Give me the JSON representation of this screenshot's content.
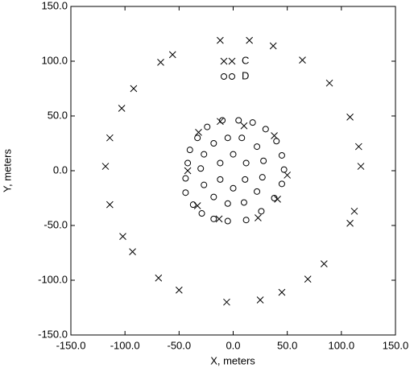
{
  "chart_data": {
    "type": "scatter",
    "xlabel": "X, meters",
    "ylabel": "Y, meters",
    "xlim": [
      -150,
      150
    ],
    "ylim": [
      -150,
      150
    ],
    "xticks": [
      {
        "value": -150,
        "label": "-150.0"
      },
      {
        "value": -100,
        "label": "-100.0"
      },
      {
        "value": -50,
        "label": "-50.0"
      },
      {
        "value": 0,
        "label": "0.0"
      },
      {
        "value": 50,
        "label": "50.0"
      },
      {
        "value": 100,
        "label": "100.0"
      },
      {
        "value": 150,
        "label": "150.0"
      }
    ],
    "yticks": [
      {
        "value": -150,
        "label": "-150.0"
      },
      {
        "value": -100,
        "label": "-100.0"
      },
      {
        "value": -50,
        "label": "-50.0"
      },
      {
        "value": 0,
        "label": "0.0"
      },
      {
        "value": 50,
        "label": "50.0"
      },
      {
        "value": 100,
        "label": "100.0"
      },
      {
        "value": 150,
        "label": "150.0"
      }
    ],
    "grid": false,
    "series": [
      {
        "name": "C",
        "marker": "x",
        "color": "#000000",
        "x": [
          -12,
          15,
          37,
          -67,
          -56,
          64,
          89,
          -92,
          -103,
          108,
          -114,
          116,
          -118,
          118,
          -114,
          112,
          108,
          -102,
          -93,
          84,
          -69,
          69,
          -50,
          45,
          -6,
          25,
          -32,
          -12,
          10,
          38,
          -42,
          50,
          41,
          -33,
          -13,
          23
        ],
        "y": [
          119,
          119,
          114,
          99,
          106,
          101,
          80,
          75,
          57,
          49,
          30,
          22,
          4,
          4,
          -31,
          -37,
          -48,
          -60,
          -74,
          -85,
          -98,
          -99,
          -109,
          -111,
          -120,
          -118,
          35,
          45,
          41,
          32,
          0,
          -4,
          -26,
          -32,
          -44,
          -43
        ]
      },
      {
        "name": "D",
        "marker": "o",
        "color": "#000000",
        "x": [
          -10,
          5,
          18,
          30,
          40,
          45,
          47,
          45,
          38,
          26,
          12,
          -5,
          -18,
          -29,
          -37,
          -44,
          -44,
          -42,
          -40,
          -33,
          -24,
          -5,
          8,
          22,
          28,
          27,
          22,
          10,
          -5,
          -18,
          -27,
          -30,
          -27,
          -18,
          0,
          12,
          11,
          0,
          -12,
          -12
        ],
        "y": [
          46,
          46,
          44,
          38,
          27,
          14,
          1,
          -12,
          -25,
          -37,
          -45,
          -46,
          -44,
          -39,
          -31,
          -20,
          -7,
          7,
          19,
          30,
          40,
          30,
          30,
          22,
          9,
          -6,
          -19,
          -29,
          -30,
          -24,
          -13,
          2,
          15,
          25,
          15,
          7,
          -8,
          -16,
          -8,
          7
        ]
      }
    ]
  }
}
